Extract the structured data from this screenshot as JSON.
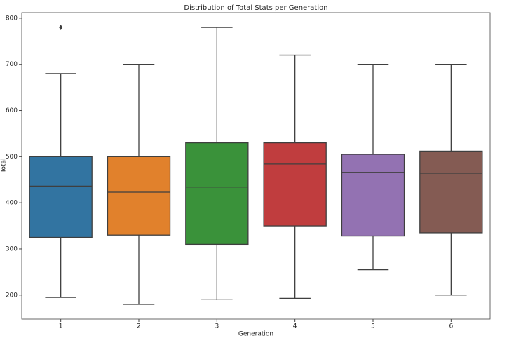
{
  "chart_data": {
    "type": "box",
    "title": "Distribution of Total Stats per Generation",
    "x_label": "Generation",
    "y_label": "Total",
    "categories": [
      "1",
      "2",
      "3",
      "4",
      "5",
      "6"
    ],
    "boxes": [
      {
        "whislo": 195,
        "q1": 325,
        "med": 436,
        "q3": 500,
        "whishi": 680,
        "fliers": [
          780
        ],
        "color": "#3274a1"
      },
      {
        "whislo": 180,
        "q1": 330,
        "med": 423,
        "q3": 500,
        "whishi": 700,
        "fliers": [],
        "color": "#e1812c"
      },
      {
        "whislo": 190,
        "q1": 310,
        "med": 434,
        "q3": 530,
        "whishi": 780,
        "fliers": [],
        "color": "#3a923a"
      },
      {
        "whislo": 193,
        "q1": 350,
        "med": 484,
        "q3": 530,
        "whishi": 720,
        "fliers": [],
        "color": "#c03d3e"
      },
      {
        "whislo": 255,
        "q1": 328,
        "med": 466,
        "q3": 505,
        "whishi": 700,
        "fliers": [],
        "color": "#9372b2"
      },
      {
        "whislo": 200,
        "q1": 335,
        "med": 464,
        "q3": 512,
        "whishi": 700,
        "fliers": [],
        "color": "#845b53"
      }
    ],
    "ylim": [
      148,
      812
    ],
    "yticks": [
      200,
      300,
      400,
      500,
      600,
      700,
      800
    ],
    "grid": false
  }
}
